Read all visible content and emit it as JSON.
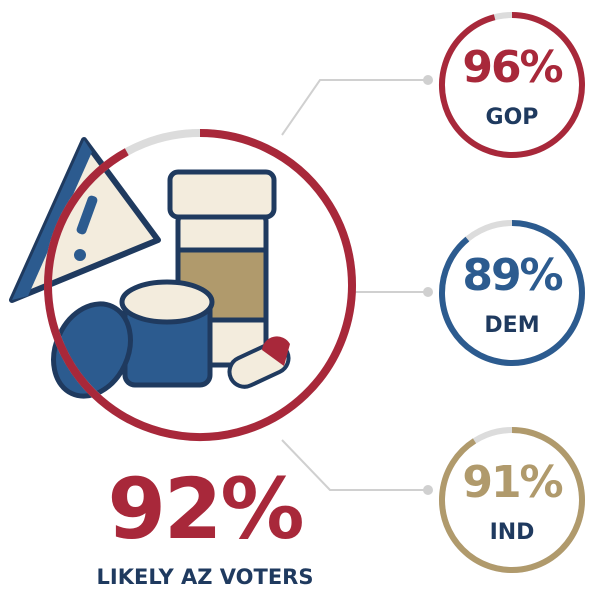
{
  "chart_data": {
    "type": "progress-rings",
    "categories": [
      "LIKELY AZ VOTERS",
      "GOP",
      "DEM",
      "IND"
    ],
    "values": [
      92,
      96,
      89,
      91
    ],
    "value_labels": [
      "92%",
      "96%",
      "89%",
      "91%"
    ],
    "colors": [
      "#a8283a",
      "#a8283a",
      "#2c5b8f",
      "#b09a6c"
    ],
    "ylim": [
      0,
      100
    ]
  }
}
